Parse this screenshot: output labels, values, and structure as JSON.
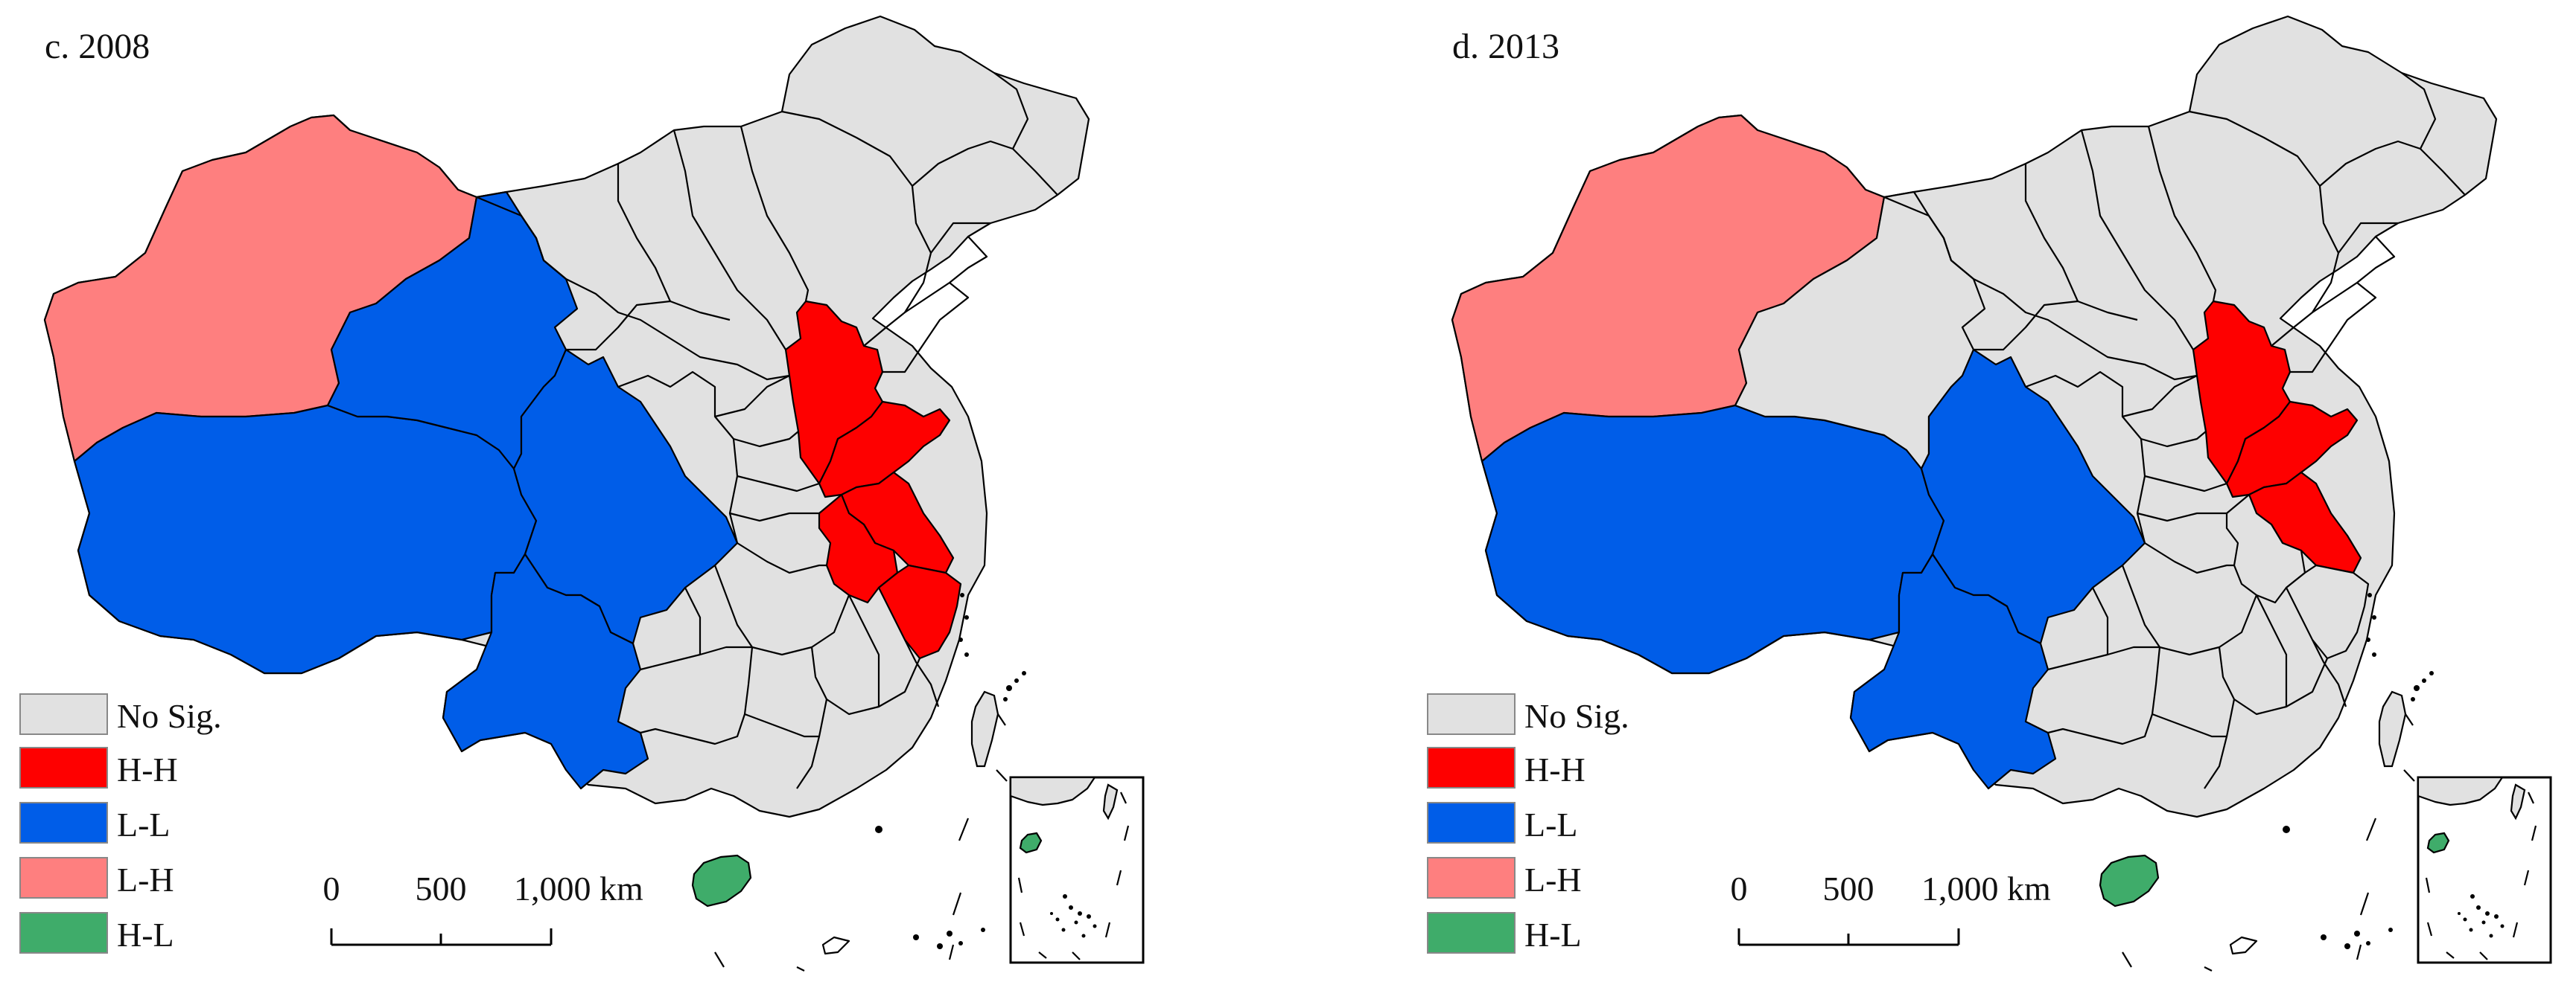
{
  "panels": [
    {
      "title": "c. 2008",
      "regions": {
        "xinjiang": "L-H",
        "qinghai": "L-L",
        "tibet": "L-L",
        "sichuan": "L-L",
        "yunnan": "L-L",
        "gansu": "No Sig.",
        "beijing_hebei": "H-H",
        "shandong": "H-H",
        "jiangsu": "H-H",
        "anhui": "H-H",
        "zhejiang": "H-H",
        "hainan": "H-L"
      }
    },
    {
      "title": "d. 2013",
      "regions": {
        "xinjiang": "L-H",
        "qinghai": "No Sig.",
        "tibet": "L-L",
        "sichuan": "L-L",
        "yunnan": "L-L",
        "gansu": "No Sig.",
        "beijing_hebei": "H-H",
        "shandong": "H-H",
        "jiangsu": "H-H",
        "anhui": "No Sig.",
        "zhejiang": "No Sig.",
        "hainan": "H-L"
      }
    }
  ],
  "legend": [
    {
      "label": "No Sig.",
      "color": "#e1e1e1"
    },
    {
      "label": "H-H",
      "color": "#fe0000"
    },
    {
      "label": "L-L",
      "color": "#005de8"
    },
    {
      "label": "L-H",
      "color": "#fe7f7f"
    },
    {
      "label": "H-L",
      "color": "#3fac6a"
    }
  ],
  "scale_bar": {
    "ticks": [
      "0",
      "500",
      "1,000 km"
    ]
  }
}
